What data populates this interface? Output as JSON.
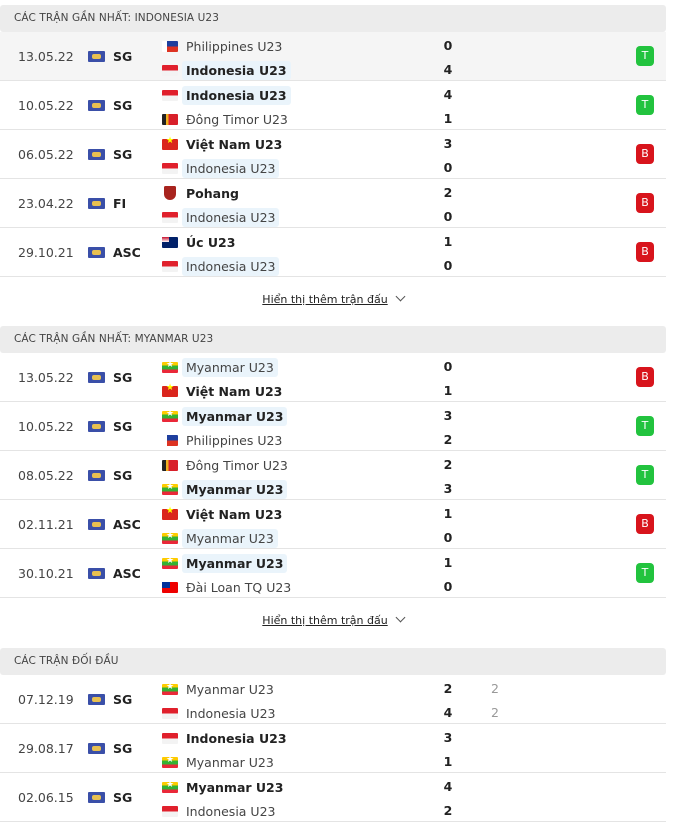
{
  "colors": {
    "win": "#22c33e",
    "loss": "#d8141c",
    "header_bg": "#ececec",
    "highlight": "#eaf4fb"
  },
  "sections": [
    {
      "title": "CÁC TRẬN GẦN NHẤT: INDONESIA U23",
      "show_more": "Hiển thị thêm trận đấu",
      "matches": [
        {
          "date": "13.05.22",
          "league": "SG",
          "home": {
            "name": "Philippines U23",
            "flag": "ph",
            "score": "0"
          },
          "away": {
            "name": "Indonesia U23",
            "flag": "id",
            "score": "4",
            "bold": true,
            "hl": true
          },
          "result": "T"
        },
        {
          "date": "10.05.22",
          "league": "SG",
          "home": {
            "name": "Indonesia U23",
            "flag": "id",
            "score": "4",
            "bold": true,
            "hl": true
          },
          "away": {
            "name": "Đông Timor U23",
            "flag": "tl",
            "score": "1"
          },
          "result": "T"
        },
        {
          "date": "06.05.22",
          "league": "SG",
          "home": {
            "name": "Việt Nam U23",
            "flag": "vn",
            "score": "3",
            "bold": true
          },
          "away": {
            "name": "Indonesia U23",
            "flag": "id",
            "score": "0",
            "hl": true
          },
          "result": "B"
        },
        {
          "date": "23.04.22",
          "league": "FI",
          "home": {
            "name": "Pohang",
            "flag": "pohang",
            "score": "2",
            "bold": true
          },
          "away": {
            "name": "Indonesia U23",
            "flag": "id",
            "score": "0",
            "hl": true
          },
          "result": "B"
        },
        {
          "date": "29.10.21",
          "league": "ASC",
          "home": {
            "name": "Úc U23",
            "flag": "au",
            "score": "1",
            "bold": true
          },
          "away": {
            "name": "Indonesia U23",
            "flag": "id",
            "score": "0",
            "hl": true
          },
          "result": "B"
        }
      ]
    },
    {
      "title": "CÁC TRẬN GẦN NHẤT: MYANMAR U23",
      "show_more": "Hiển thị thêm trận đấu",
      "matches": [
        {
          "date": "13.05.22",
          "league": "SG",
          "home": {
            "name": "Myanmar U23",
            "flag": "mm",
            "score": "0",
            "hl": true
          },
          "away": {
            "name": "Việt Nam U23",
            "flag": "vn",
            "score": "1",
            "bold": true
          },
          "result": "B"
        },
        {
          "date": "10.05.22",
          "league": "SG",
          "home": {
            "name": "Myanmar U23",
            "flag": "mm",
            "score": "3",
            "bold": true,
            "hl": true
          },
          "away": {
            "name": "Philippines U23",
            "flag": "ph",
            "score": "2"
          },
          "result": "T"
        },
        {
          "date": "08.05.22",
          "league": "SG",
          "home": {
            "name": "Đông Timor U23",
            "flag": "tl",
            "score": "2"
          },
          "away": {
            "name": "Myanmar U23",
            "flag": "mm",
            "score": "3",
            "bold": true,
            "hl": true
          },
          "result": "T"
        },
        {
          "date": "02.11.21",
          "league": "ASC",
          "home": {
            "name": "Việt Nam U23",
            "flag": "vn",
            "score": "1",
            "bold": true
          },
          "away": {
            "name": "Myanmar U23",
            "flag": "mm",
            "score": "0",
            "hl": true
          },
          "result": "B"
        },
        {
          "date": "30.10.21",
          "league": "ASC",
          "home": {
            "name": "Myanmar U23",
            "flag": "mm",
            "score": "1",
            "bold": true,
            "hl": true
          },
          "away": {
            "name": "Đài Loan TQ U23",
            "flag": "tw",
            "score": "0"
          },
          "result": "T"
        }
      ]
    },
    {
      "title": "CÁC TRẬN ĐỐI ĐẦU",
      "matches": [
        {
          "date": "07.12.19",
          "league": "SG",
          "home": {
            "name": "Myanmar U23",
            "flag": "mm",
            "score": "2",
            "extra": "2"
          },
          "away": {
            "name": "Indonesia U23",
            "flag": "id",
            "score": "4",
            "extra": "2"
          }
        },
        {
          "date": "29.08.17",
          "league": "SG",
          "home": {
            "name": "Indonesia U23",
            "flag": "id",
            "score": "3",
            "bold": true
          },
          "away": {
            "name": "Myanmar U23",
            "flag": "mm",
            "score": "1"
          }
        },
        {
          "date": "02.06.15",
          "league": "SG",
          "home": {
            "name": "Myanmar U23",
            "flag": "mm",
            "score": "4",
            "bold": true
          },
          "away": {
            "name": "Indonesia U23",
            "flag": "id",
            "score": "2"
          }
        }
      ]
    }
  ]
}
